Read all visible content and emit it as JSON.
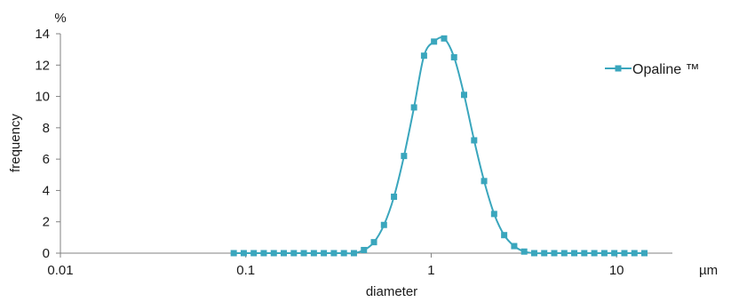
{
  "chart_data": {
    "type": "line",
    "x_scale": "log",
    "xlim": [
      0.01,
      20
    ],
    "ylim": [
      0,
      14
    ],
    "x_ticks": [
      {
        "value": 0.01,
        "label": "0.01"
      },
      {
        "value": 0.1,
        "label": "0.1"
      },
      {
        "value": 1,
        "label": "1"
      },
      {
        "value": 10,
        "label": "10"
      }
    ],
    "y_ticks": [
      {
        "value": 0,
        "label": "0"
      },
      {
        "value": 2,
        "label": "2"
      },
      {
        "value": 4,
        "label": "4"
      },
      {
        "value": 6,
        "label": "6"
      },
      {
        "value": 8,
        "label": "8"
      },
      {
        "value": 10,
        "label": "10"
      },
      {
        "value": 12,
        "label": "12"
      },
      {
        "value": 14,
        "label": "14"
      }
    ],
    "y_unit": "%",
    "x_unit": "µm",
    "xlabel": "diameter",
    "ylabel": "frequency",
    "grid": false,
    "legend_position": "top-right",
    "series": [
      {
        "name": "Opaline ™",
        "color": "#3aa6bd",
        "marker": "square",
        "x": [
          0.0861,
          0.0975,
          0.1104,
          0.125,
          0.1416,
          0.1603,
          0.1816,
          0.2056,
          0.2329,
          0.2637,
          0.2987,
          0.3382,
          0.383,
          0.4338,
          0.4913,
          0.5563,
          0.63,
          0.7135,
          0.808,
          0.915,
          1.036,
          1.174,
          1.329,
          1.505,
          1.705,
          1.93,
          2.186,
          2.476,
          2.804,
          3.175,
          3.596,
          4.072,
          4.611,
          5.222,
          5.914,
          6.697,
          7.584,
          8.589,
          9.727,
          11.02,
          12.48,
          14.13
        ],
        "y": [
          0,
          0,
          0,
          0,
          0,
          0,
          0,
          0,
          0,
          0,
          0,
          0,
          0,
          0.2,
          0.7,
          1.8,
          3.6,
          6.2,
          9.3,
          12.6,
          13.5,
          13.7,
          12.5,
          10.1,
          7.2,
          4.6,
          2.5,
          1.15,
          0.45,
          0.1,
          0,
          0,
          0,
          0,
          0,
          0,
          0,
          0,
          0,
          0,
          0,
          0
        ]
      }
    ]
  }
}
